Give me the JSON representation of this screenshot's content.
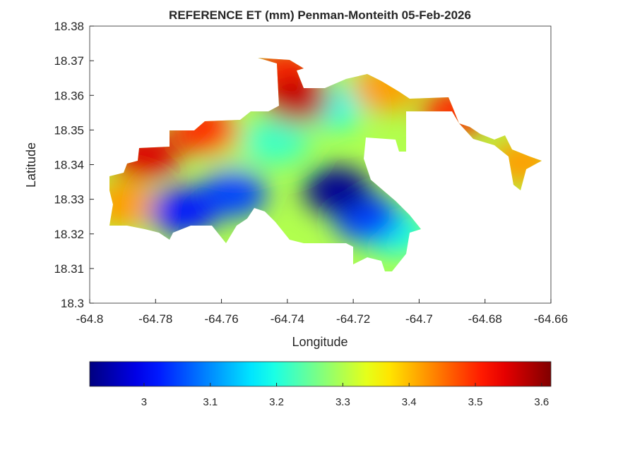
{
  "chart_data": {
    "type": "heatmap",
    "title": "REFERENCE ET (mm) Penman-Monteith 05-Feb-2026",
    "xlabel": "Longitude",
    "ylabel": "Latitude",
    "xlim": [
      -64.8,
      -64.66
    ],
    "ylim": [
      18.3,
      18.38
    ],
    "xticks": [
      "-64.8",
      "-64.78",
      "-64.76",
      "-64.74",
      "-64.72",
      "-64.7",
      "-64.68",
      "-64.66"
    ],
    "yticks": [
      "18.3",
      "18.31",
      "18.32",
      "18.33",
      "18.34",
      "18.35",
      "18.36",
      "18.37",
      "18.38"
    ],
    "colormap": "jet",
    "colorbar": {
      "range": [
        2.918,
        3.614
      ],
      "ticks": [
        "3",
        "3.1",
        "3.2",
        "3.3",
        "3.4",
        "3.5",
        "3.6"
      ],
      "placement": "bottom"
    },
    "base_value": 3.3,
    "field_samples": [
      {
        "lon": -64.725,
        "lat": 18.3326,
        "value": 2.93
      },
      {
        "lon": -64.7565,
        "lat": 18.3316,
        "value": 3.05
      },
      {
        "lon": -64.7715,
        "lat": 18.3265,
        "value": 3.02
      },
      {
        "lon": -64.7157,
        "lat": 18.3244,
        "value": 3.05
      },
      {
        "lon": -64.7372,
        "lat": 18.359,
        "value": 3.57
      },
      {
        "lon": -64.7833,
        "lat": 18.3428,
        "value": 3.55
      },
      {
        "lon": -64.765,
        "lat": 18.3499,
        "value": 3.5
      },
      {
        "lon": -64.7404,
        "lat": 18.3672,
        "value": 3.5
      },
      {
        "lon": -64.689,
        "lat": 18.355,
        "value": 3.5
      },
      {
        "lon": -64.7104,
        "lat": 18.3621,
        "value": 3.42
      },
      {
        "lon": -64.7897,
        "lat": 18.3285,
        "value": 3.42
      },
      {
        "lon": -64.6686,
        "lat": 18.3407,
        "value": 3.42
      },
      {
        "lon": -64.7265,
        "lat": 18.357,
        "value": 3.2
      },
      {
        "lon": -64.7072,
        "lat": 18.3204,
        "value": 3.2
      },
      {
        "lon": -64.7436,
        "lat": 18.3468,
        "value": 3.22
      },
      {
        "lon": -64.7554,
        "lat": 18.3468,
        "value": 3.3
      }
    ]
  }
}
